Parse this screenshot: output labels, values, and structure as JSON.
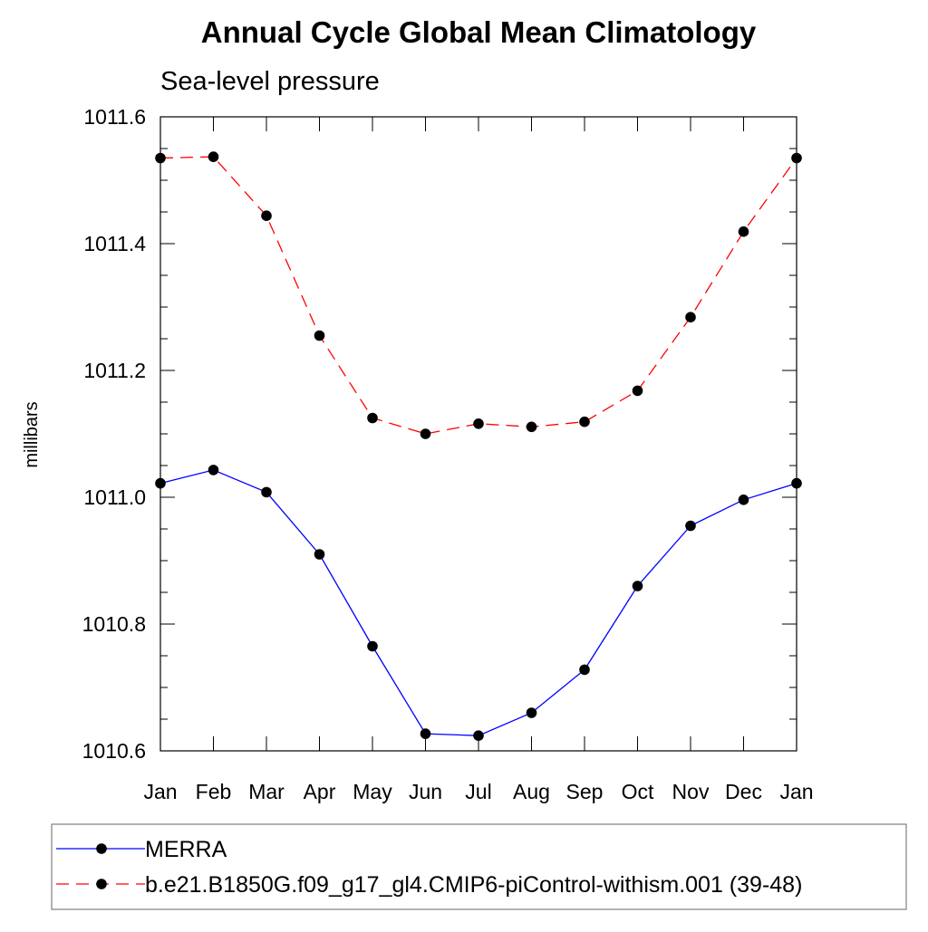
{
  "chart_data": {
    "type": "line",
    "title": "Annual Cycle Global Mean Climatology",
    "subtitle": "Sea-level pressure",
    "xlabel": "",
    "ylabel": "millibars",
    "categories": [
      "Jan",
      "Feb",
      "Mar",
      "Apr",
      "May",
      "Jun",
      "Jul",
      "Aug",
      "Sep",
      "Oct",
      "Nov",
      "Dec",
      "Jan"
    ],
    "ylim": [
      1010.6,
      1011.6
    ],
    "yticks": [
      1010.6,
      1010.8,
      1011.0,
      1011.2,
      1011.4,
      1011.6
    ],
    "ytick_labels": [
      "1010.6",
      "1010.8",
      "1011.0",
      "1011.2",
      "1011.4",
      "1011.6"
    ],
    "grid": false,
    "legend_position": "bottom",
    "series": [
      {
        "name": "MERRA",
        "color": "#0000ff",
        "line_style": "solid",
        "marker": "filled-circle",
        "values": [
          1011.022,
          1011.043,
          1011.008,
          1010.91,
          1010.765,
          1010.627,
          1010.624,
          1010.66,
          1010.728,
          1010.86,
          1010.955,
          1010.996,
          1011.022
        ]
      },
      {
        "name": "b.e21.B1850G.f09_g17_gl4.CMIP6-piControl-withism.001 (39-48)",
        "color": "#ff0000",
        "line_style": "dashed",
        "marker": "filled-circle",
        "values": [
          1011.535,
          1011.537,
          1011.444,
          1011.255,
          1011.125,
          1011.1,
          1011.116,
          1011.111,
          1011.119,
          1011.168,
          1011.284,
          1011.419,
          1011.535
        ]
      }
    ]
  }
}
